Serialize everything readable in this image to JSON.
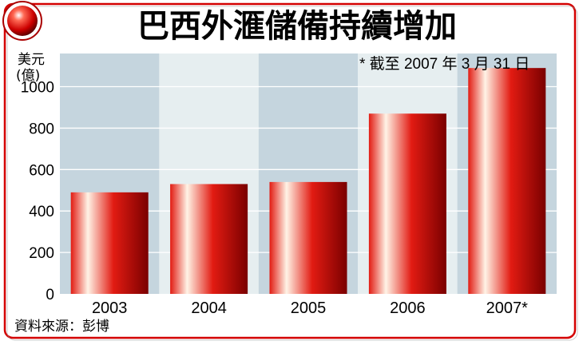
{
  "title": "巴西外滙儲備持續增加",
  "source": "資料來源：彭博",
  "colors": {
    "frame": "#d40000",
    "band_dark": "#c5d5de",
    "band_light": "#e6eef0",
    "bar_dark": "#7a0000",
    "bar_mid": "#e21b12",
    "bar_light": "#fff3e6"
  },
  "chart_data": {
    "type": "bar",
    "title": "巴西外滙儲備持續增加",
    "ylabel_lines": [
      "美元",
      "(億)"
    ],
    "categories": [
      "2003",
      "2004",
      "2005",
      "2006",
      "2007*"
    ],
    "values": [
      490,
      530,
      540,
      870,
      1090
    ],
    "ylim": [
      0,
      1160
    ],
    "yticks": [
      0,
      200,
      400,
      600,
      800,
      1000
    ],
    "annotation": "* 截至 2007 年 3 月 31 日",
    "grid": true,
    "legend": "none"
  }
}
